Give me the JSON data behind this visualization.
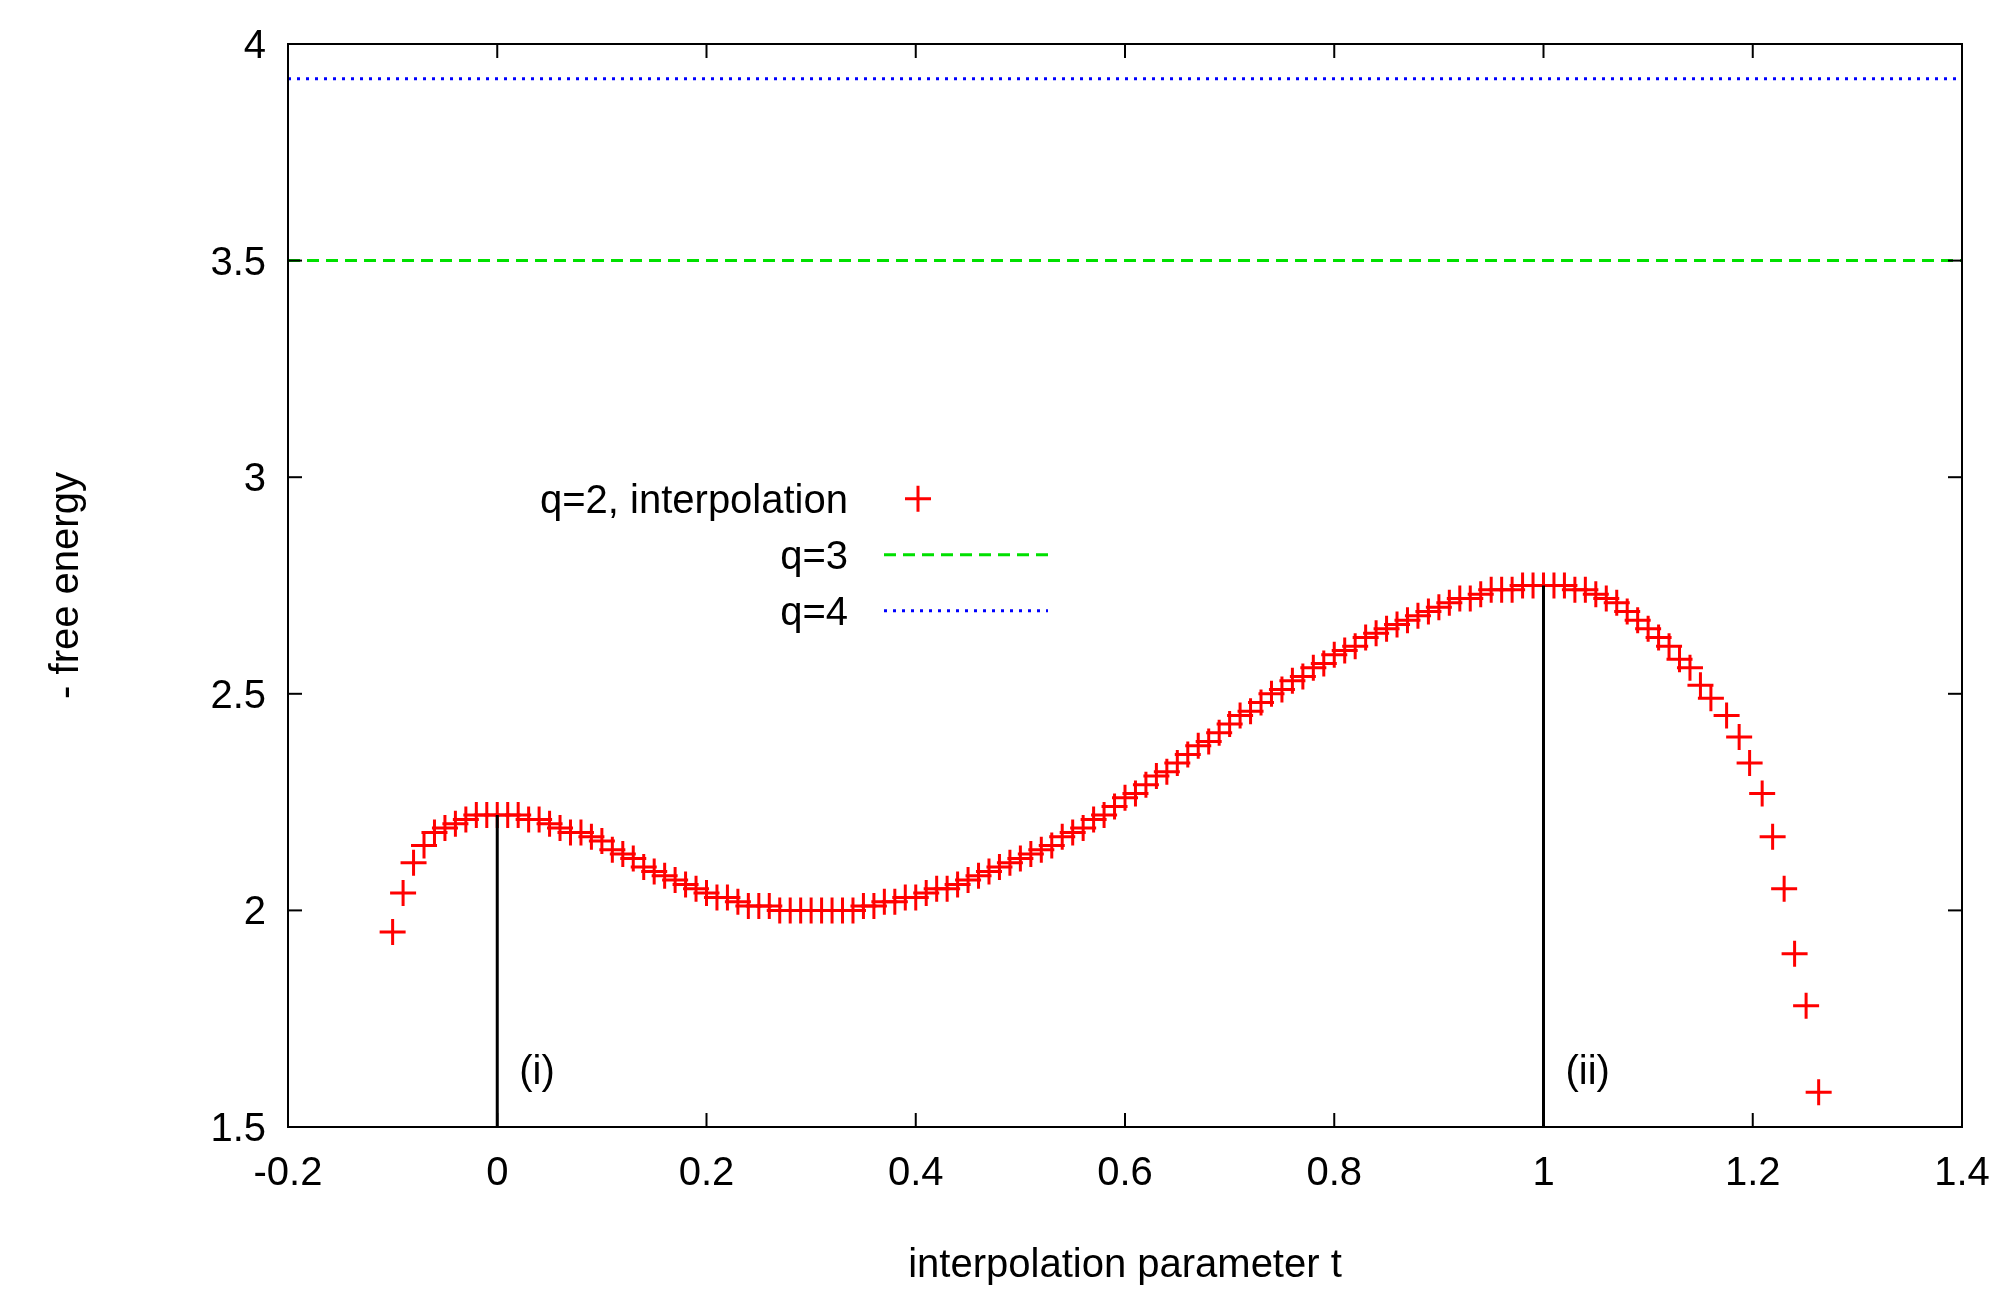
{
  "chart_data": {
    "type": "scatter",
    "xlabel": "interpolation parameter t",
    "ylabel": "- free energy",
    "xlim": [
      -0.2,
      1.4
    ],
    "ylim": [
      1.5,
      4
    ],
    "xticks": [
      -0.2,
      0,
      0.2,
      0.4,
      0.6,
      0.8,
      1,
      1.2,
      1.4
    ],
    "yticks": [
      1.5,
      2,
      2.5,
      3,
      3.5,
      4
    ],
    "grid": false,
    "legend": "left",
    "series": [
      {
        "name": "q=2, interpolation",
        "marker": "cross",
        "color": "#ff0000",
        "x": [
          -0.1,
          -0.09,
          -0.08,
          -0.07,
          -0.06,
          -0.05,
          -0.04,
          -0.03,
          -0.02,
          -0.01,
          0,
          0.01,
          0.02,
          0.03,
          0.04,
          0.05,
          0.06,
          0.07,
          0.08,
          0.09,
          0.1,
          0.11,
          0.12,
          0.13,
          0.14,
          0.15,
          0.16,
          0.17,
          0.18,
          0.19,
          0.2,
          0.21,
          0.22,
          0.23,
          0.24,
          0.25,
          0.26,
          0.27,
          0.28,
          0.29,
          0.3,
          0.31,
          0.32,
          0.33,
          0.34,
          0.35,
          0.36,
          0.37,
          0.38,
          0.39,
          0.4,
          0.41,
          0.42,
          0.43,
          0.44,
          0.45,
          0.46,
          0.47,
          0.48,
          0.49,
          0.5,
          0.51,
          0.52,
          0.53,
          0.54,
          0.55,
          0.56,
          0.57,
          0.58,
          0.59,
          0.6,
          0.61,
          0.62,
          0.63,
          0.64,
          0.65,
          0.66,
          0.67,
          0.68,
          0.69,
          0.7,
          0.71,
          0.72,
          0.73,
          0.74,
          0.75,
          0.76,
          0.77,
          0.78,
          0.79,
          0.8,
          0.81,
          0.82,
          0.83,
          0.84,
          0.85,
          0.86,
          0.87,
          0.88,
          0.89,
          0.9,
          0.91,
          0.92,
          0.93,
          0.94,
          0.95,
          0.96,
          0.97,
          0.98,
          0.99,
          1,
          1.01,
          1.02,
          1.03,
          1.04,
          1.05,
          1.06,
          1.07,
          1.08,
          1.09,
          1.1,
          1.11,
          1.12,
          1.13,
          1.14,
          1.15,
          1.16,
          1.175,
          1.187,
          1.197,
          1.209,
          1.219,
          1.23,
          1.24,
          1.251,
          1.263
        ],
        "values": [
          1.95,
          2.04,
          2.11,
          2.15,
          2.18,
          2.19,
          2.2,
          2.21,
          2.22,
          2.22,
          2.22,
          2.22,
          2.22,
          2.21,
          2.21,
          2.2,
          2.19,
          2.18,
          2.18,
          2.17,
          2.16,
          2.14,
          2.13,
          2.12,
          2.1,
          2.09,
          2.08,
          2.07,
          2.06,
          2.05,
          2.04,
          2.03,
          2.03,
          2.02,
          2.01,
          2.01,
          2.01,
          2,
          2,
          2,
          2,
          2,
          2,
          2,
          2,
          2.01,
          2.01,
          2.02,
          2.02,
          2.03,
          2.03,
          2.04,
          2.05,
          2.05,
          2.06,
          2.07,
          2.08,
          2.09,
          2.1,
          2.11,
          2.12,
          2.13,
          2.14,
          2.15,
          2.17,
          2.18,
          2.19,
          2.21,
          2.22,
          2.24,
          2.26,
          2.27,
          2.29,
          2.31,
          2.32,
          2.34,
          2.36,
          2.38,
          2.39,
          2.41,
          2.43,
          2.45,
          2.46,
          2.48,
          2.5,
          2.51,
          2.53,
          2.54,
          2.56,
          2.57,
          2.59,
          2.6,
          2.61,
          2.63,
          2.64,
          2.65,
          2.66,
          2.67,
          2.68,
          2.69,
          2.7,
          2.71,
          2.72,
          2.72,
          2.73,
          2.74,
          2.74,
          2.74,
          2.75,
          2.75,
          2.75,
          2.75,
          2.75,
          2.74,
          2.74,
          2.73,
          2.72,
          2.71,
          2.69,
          2.67,
          2.65,
          2.63,
          2.61,
          2.58,
          2.56,
          2.52,
          2.49,
          2.45,
          2.4,
          2.34,
          2.27,
          2.17,
          2.05,
          1.9,
          1.78,
          1.58
        ]
      },
      {
        "name": "q=3",
        "type": "line",
        "color": "#00e000",
        "line_style": "dashed",
        "x": [
          -0.2,
          1.4
        ],
        "values": [
          3.5,
          3.5
        ]
      },
      {
        "name": "q=4",
        "type": "line",
        "color": "#0000ff",
        "line_style": "dotted",
        "x": [
          -0.2,
          1.4
        ],
        "values": [
          3.92,
          3.92
        ]
      },
      {
        "type": "line",
        "color": "#000000",
        "line_style": "solid",
        "x": [
          0,
          0
        ],
        "values": [
          1.5,
          2.22
        ]
      },
      {
        "type": "line",
        "color": "#000000",
        "line_style": "solid",
        "x": [
          1,
          1
        ],
        "values": [
          1.5,
          2.75
        ]
      }
    ],
    "annotations": [
      {
        "text": "(i)",
        "x": 0,
        "y": 1.6
      },
      {
        "text": "(ii)",
        "x": 1,
        "y": 1.6
      }
    ]
  }
}
